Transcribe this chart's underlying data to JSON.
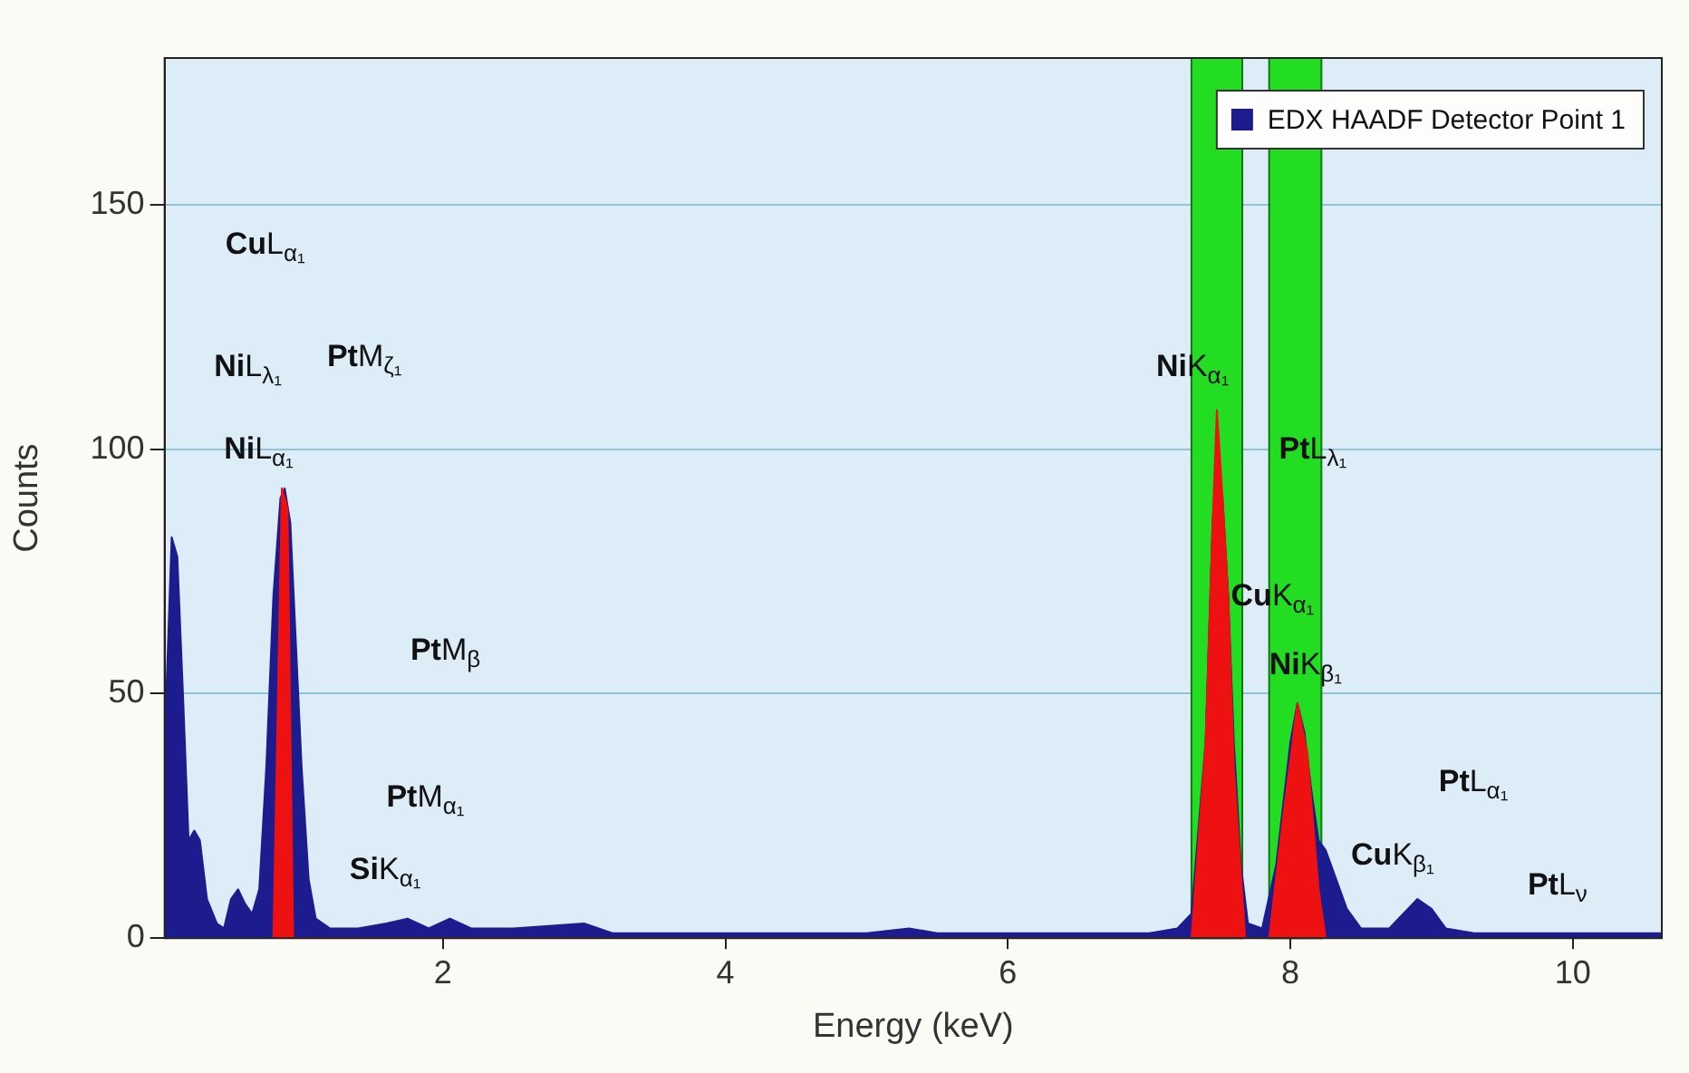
{
  "chart_data": {
    "type": "area",
    "xlabel": "Energy (keV)",
    "ylabel": "Counts",
    "xlim": [
      0.03,
      10.63
    ],
    "xticks": [
      2,
      4,
      6,
      8,
      10
    ],
    "ylim": [
      0,
      180
    ],
    "yticks": [
      0,
      50,
      100,
      150
    ],
    "grid": "y",
    "legend": "top right",
    "marker": "none",
    "series": [
      {
        "name": "EDX HAADF Detector Point 1",
        "color": "#1c1c8e",
        "x": [
          0.03,
          0.08,
          0.12,
          0.16,
          0.2,
          0.24,
          0.28,
          0.33,
          0.4,
          0.45,
          0.5,
          0.55,
          0.6,
          0.65,
          0.7,
          0.75,
          0.8,
          0.85,
          0.88,
          0.92,
          0.96,
          1.0,
          1.05,
          1.1,
          1.2,
          1.4,
          1.6,
          1.75,
          1.9,
          2.05,
          2.2,
          2.5,
          3.0,
          3.2,
          3.5,
          4.0,
          4.5,
          5.0,
          5.3,
          5.5,
          6.0,
          6.5,
          7.0,
          7.2,
          7.3,
          7.4,
          7.45,
          7.48,
          7.52,
          7.56,
          7.6,
          7.65,
          7.7,
          7.8,
          7.9,
          8.0,
          8.05,
          8.1,
          8.15,
          8.2,
          8.25,
          8.3,
          8.4,
          8.5,
          8.7,
          8.8,
          8.9,
          9.0,
          9.1,
          9.3,
          9.6,
          10.0,
          10.3,
          10.63
        ],
        "values": [
          40,
          82,
          78,
          50,
          20,
          22,
          20,
          8,
          3,
          2,
          8,
          10,
          7,
          5,
          10,
          35,
          70,
          90,
          92,
          85,
          60,
          35,
          12,
          4,
          2,
          2,
          3,
          4,
          2,
          4,
          2,
          2,
          3,
          1,
          1,
          1,
          1,
          1,
          2,
          1,
          1,
          1,
          1,
          2,
          5,
          40,
          85,
          98,
          90,
          70,
          40,
          15,
          3,
          2,
          15,
          40,
          48,
          42,
          30,
          20,
          18,
          14,
          6,
          2,
          2,
          5,
          8,
          6,
          2,
          1,
          1,
          1,
          1,
          1
        ]
      },
      {
        "type": "area",
        "color": "#ee1111",
        "x": [
          0.8,
          0.86,
          0.9,
          0.94,
          7.3,
          7.4,
          7.45,
          7.48,
          7.52,
          7.56,
          7.6,
          7.68,
          7.85,
          7.95,
          8.05,
          8.12,
          8.2,
          8.25
        ],
        "values": [
          0,
          92,
          88,
          0,
          0,
          40,
          85,
          108,
          90,
          70,
          35,
          0,
          0,
          25,
          48,
          38,
          10,
          0
        ]
      }
    ],
    "bands": [
      {
        "axis": "x",
        "from": 7.3,
        "to": 7.66,
        "color": "#22dd22"
      },
      {
        "axis": "x",
        "from": 7.85,
        "to": 8.22,
        "color": "#22dd22"
      }
    ],
    "annotations": [
      "CuL$_{α₁}$",
      "NiL$_{λ₁}$",
      "PtM$_{ζ₁}$",
      "NiL$_{α₁}$",
      "PtM$_{β}$",
      "PtM$_{α₁}$",
      "SiK$_{α₁}$",
      "NiK$_{α₁}$",
      "PtL$_{λ₁}$",
      "CuK$_{α₁}$",
      "NiK$_{β₁}$",
      "PtL$_{α₁}$",
      "CuK$_{β₁}$",
      "PtL$_{ν}$"
    ]
  }
}
